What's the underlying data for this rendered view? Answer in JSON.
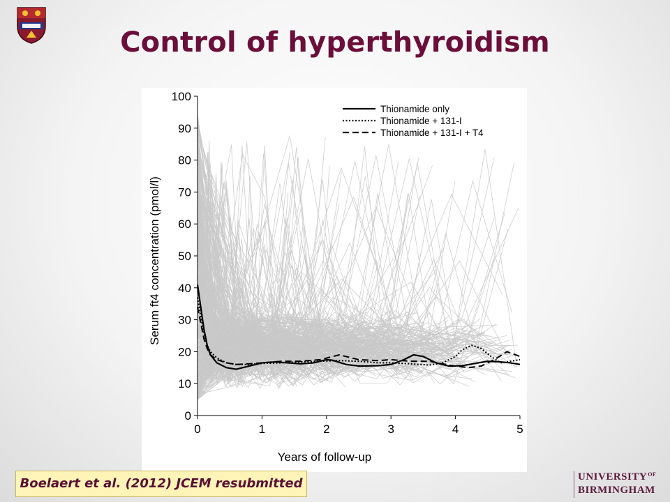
{
  "slide": {
    "title": "Control of hyperthyroidism",
    "citation": "Boelaert et al. (2012) JCEM resubmitted",
    "logo": {
      "line1": "UNIVERSITY",
      "line1_suffix": "OF",
      "line2": "BIRMINGHAM"
    },
    "crest_icon": "university-crest-icon"
  },
  "chart_data": {
    "type": "line",
    "title": "",
    "xlabel": "Years of follow-up",
    "ylabel": "Serum ft4 concentration (pmol/l)",
    "xlim": [
      0,
      5
    ],
    "ylim": [
      0,
      100
    ],
    "xticks": [
      0,
      1,
      2,
      3,
      4,
      5
    ],
    "yticks": [
      0,
      10,
      20,
      30,
      40,
      50,
      60,
      70,
      80,
      90,
      100
    ],
    "grid": false,
    "legend_position": "top-right",
    "background_traces": "individual patient trajectories (light grey)",
    "series": [
      {
        "name": "Thionamide only",
        "style": "solid",
        "x": [
          0,
          0.05,
          0.1,
          0.15,
          0.2,
          0.3,
          0.45,
          0.6,
          0.8,
          1.0,
          1.2,
          1.4,
          1.6,
          1.8,
          2.0,
          2.1,
          2.3,
          2.5,
          2.8,
          3.0,
          3.2,
          3.35,
          3.5,
          3.7,
          3.9,
          4.1,
          4.3,
          4.5,
          4.7,
          4.85,
          5.0
        ],
        "y": [
          41,
          34,
          27,
          22,
          19,
          16.5,
          15,
          14.5,
          15.5,
          16.5,
          16.8,
          16.5,
          16.2,
          16.5,
          17.5,
          17.3,
          16,
          15.5,
          15.6,
          16,
          17.5,
          19,
          18.5,
          16.5,
          15.5,
          15.6,
          16.3,
          17,
          16.8,
          16.5,
          16
        ]
      },
      {
        "name": "Thionamide + 131-I",
        "style": "dotted",
        "x": [
          0,
          0.05,
          0.1,
          0.15,
          0.2,
          0.3,
          0.45,
          0.6,
          0.8,
          1.0,
          1.3,
          1.6,
          1.9,
          2.2,
          2.5,
          2.8,
          3.0,
          3.3,
          3.6,
          3.8,
          4.0,
          4.1,
          4.25,
          4.4,
          4.55,
          4.7,
          4.85,
          5.0
        ],
        "y": [
          37,
          31,
          26,
          22,
          20,
          18,
          16.5,
          16,
          16,
          16.3,
          16.5,
          16.8,
          17,
          17.2,
          17,
          16.5,
          16.5,
          16.2,
          15.8,
          16.5,
          18.5,
          20.5,
          22,
          21,
          18.5,
          16.5,
          17,
          17.5
        ]
      },
      {
        "name": "Thionamide + 131-I + T4",
        "style": "dashed",
        "x": [
          0,
          0.05,
          0.1,
          0.15,
          0.2,
          0.3,
          0.45,
          0.6,
          0.8,
          1.0,
          1.3,
          1.6,
          1.9,
          2.2,
          2.5,
          2.8,
          3.0,
          3.3,
          3.6,
          3.8,
          4.0,
          4.2,
          4.4,
          4.6,
          4.8,
          5.0
        ],
        "y": [
          34,
          29,
          24,
          21,
          19,
          17.5,
          16.5,
          16,
          16.2,
          16.5,
          17,
          17,
          17.5,
          19,
          17.5,
          17.2,
          17.5,
          17,
          17,
          16.2,
          15.5,
          15,
          15.5,
          17.5,
          20,
          18.5
        ]
      }
    ]
  }
}
